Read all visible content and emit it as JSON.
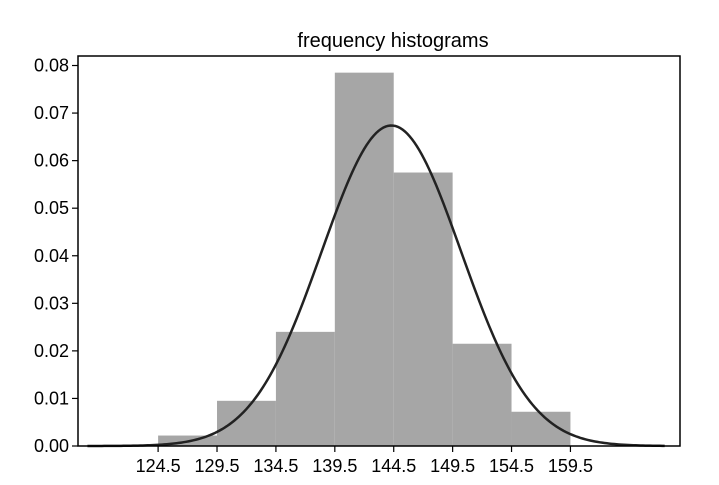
{
  "chart_data": {
    "type": "bar",
    "title": "frequency histograms",
    "xlabel": "",
    "ylabel": "",
    "x_ticks": [
      "124.5",
      "129.5",
      "134.5",
      "139.5",
      "144.5",
      "149.5",
      "154.5",
      "159.5"
    ],
    "y_ticks": [
      "0.00",
      "0.01",
      "0.02",
      "0.03",
      "0.04",
      "0.05",
      "0.06",
      "0.07",
      "0.08"
    ],
    "xlim": [
      117.7,
      168.8
    ],
    "ylim": [
      0,
      0.082
    ],
    "bin_edges": [
      124.5,
      129.5,
      134.5,
      139.5,
      144.5,
      149.5,
      154.5,
      159.5
    ],
    "values": [
      0.0022,
      0.0095,
      0.024,
      0.0785,
      0.0575,
      0.0215,
      0.0072
    ],
    "bar_color": "#a6a6a6",
    "curve": {
      "type": "normal-density",
      "mean": 144.3,
      "sd": 5.92,
      "x_range": [
        118.5,
        167.5
      ],
      "color": "#222222"
    },
    "grid": false,
    "legend": "none"
  }
}
